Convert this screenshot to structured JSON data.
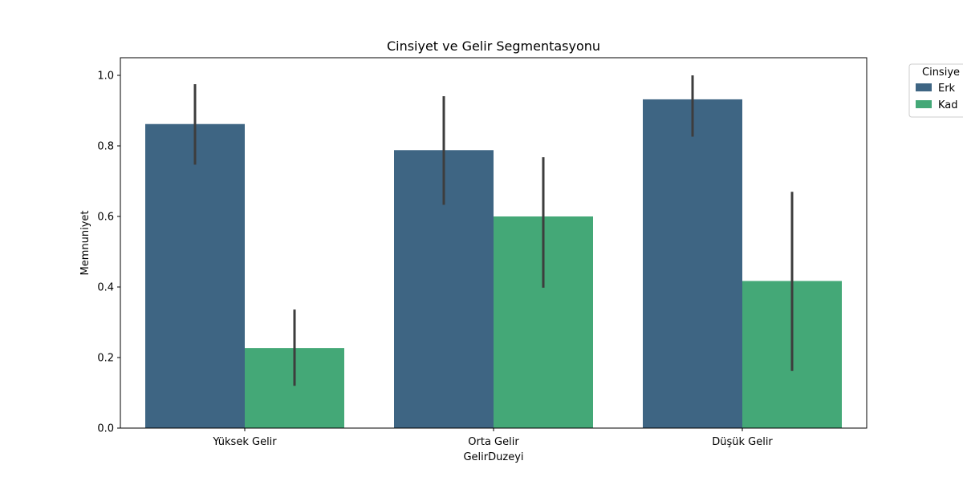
{
  "chart_data": {
    "type": "bar",
    "title": "Cinsiyet ve Gelir Segmentasyonu",
    "xlabel": "GelirDuzeyi",
    "ylabel": "Memnuniyet",
    "categories": [
      "Yüksek Gelir",
      "Orta Gelir",
      "Düşük Gelir"
    ],
    "ylim": [
      0,
      1.05
    ],
    "yticks": [
      0.0,
      0.2,
      0.4,
      0.6,
      0.8,
      1.0
    ],
    "ytick_labels": [
      "0.0",
      "0.2",
      "0.4",
      "0.6",
      "0.8",
      "1.0"
    ],
    "grid": false,
    "legend": {
      "title": "Cinsiye",
      "placement": "top-right, outside plot"
    },
    "series": [
      {
        "name": "Erk",
        "color": "#3e6583",
        "values": [
          0.862,
          0.788,
          0.932
        ],
        "ci_low": [
          0.747,
          0.633,
          0.826
        ],
        "ci_high": [
          0.975,
          0.941,
          1.0
        ]
      },
      {
        "name": "Kad",
        "color": "#44a877",
        "values": [
          0.227,
          0.6,
          0.417
        ],
        "ci_low": [
          0.12,
          0.398,
          0.162
        ],
        "ci_high": [
          0.336,
          0.768,
          0.67
        ]
      }
    ],
    "error_bar_color": "#3d3d3d"
  }
}
